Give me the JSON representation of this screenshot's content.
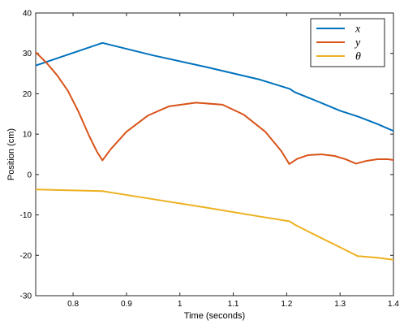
{
  "chart_data": {
    "type": "line",
    "xlabel": "Time (seconds)",
    "ylabel": "Position (cm)",
    "xlim": [
      0.73,
      1.4
    ],
    "ylim": [
      -30,
      40
    ],
    "xticks": [
      0.8,
      0.9,
      1.0,
      1.1,
      1.2,
      1.3,
      1.4
    ],
    "xtick_labels": [
      "0.8",
      "0.9",
      "1",
      "1.1",
      "1.2",
      "1.3",
      "1.4"
    ],
    "yticks": [
      -30,
      -20,
      -10,
      0,
      10,
      20,
      30,
      40
    ],
    "ytick_labels": [
      "-30",
      "-20",
      "-10",
      "0",
      "10",
      "20",
      "30",
      "40"
    ],
    "grid": false,
    "legend_position": "top-right",
    "series": [
      {
        "name": "x",
        "color": "#0072BD",
        "points": [
          [
            0.73,
            27.0
          ],
          [
            0.855,
            32.6
          ],
          [
            0.95,
            29.5
          ],
          [
            1.05,
            26.6
          ],
          [
            1.15,
            23.5
          ],
          [
            1.206,
            21.2
          ],
          [
            1.215,
            20.4
          ],
          [
            1.26,
            18.0
          ],
          [
            1.3,
            15.8
          ],
          [
            1.335,
            14.3
          ],
          [
            1.37,
            12.5
          ],
          [
            1.4,
            10.8
          ]
        ]
      },
      {
        "name": "y",
        "color": "#D95319",
        "points": [
          [
            0.73,
            30.3
          ],
          [
            0.75,
            27.7
          ],
          [
            0.77,
            24.6
          ],
          [
            0.79,
            20.8
          ],
          [
            0.81,
            15.6
          ],
          [
            0.83,
            9.6
          ],
          [
            0.845,
            5.6
          ],
          [
            0.855,
            3.5
          ],
          [
            0.87,
            6.2
          ],
          [
            0.9,
            10.6
          ],
          [
            0.94,
            14.6
          ],
          [
            0.98,
            16.9
          ],
          [
            1.03,
            17.8
          ],
          [
            1.08,
            17.3
          ],
          [
            1.12,
            14.8
          ],
          [
            1.16,
            10.6
          ],
          [
            1.19,
            5.8
          ],
          [
            1.205,
            2.6
          ],
          [
            1.22,
            3.9
          ],
          [
            1.24,
            4.8
          ],
          [
            1.265,
            5.0
          ],
          [
            1.29,
            4.6
          ],
          [
            1.31,
            3.8
          ],
          [
            1.33,
            2.7
          ],
          [
            1.35,
            3.4
          ],
          [
            1.37,
            3.8
          ],
          [
            1.39,
            3.8
          ],
          [
            1.4,
            3.6
          ]
        ]
      },
      {
        "name": "θ",
        "color": "#EDB120",
        "points": [
          [
            0.73,
            -3.7
          ],
          [
            0.855,
            -4.1
          ],
          [
            0.95,
            -6.1
          ],
          [
            1.05,
            -8.2
          ],
          [
            1.15,
            -10.4
          ],
          [
            1.206,
            -11.6
          ],
          [
            1.215,
            -12.4
          ],
          [
            1.26,
            -15.4
          ],
          [
            1.3,
            -18.0
          ],
          [
            1.333,
            -20.2
          ],
          [
            1.37,
            -20.6
          ],
          [
            1.4,
            -21.1
          ]
        ]
      }
    ]
  }
}
